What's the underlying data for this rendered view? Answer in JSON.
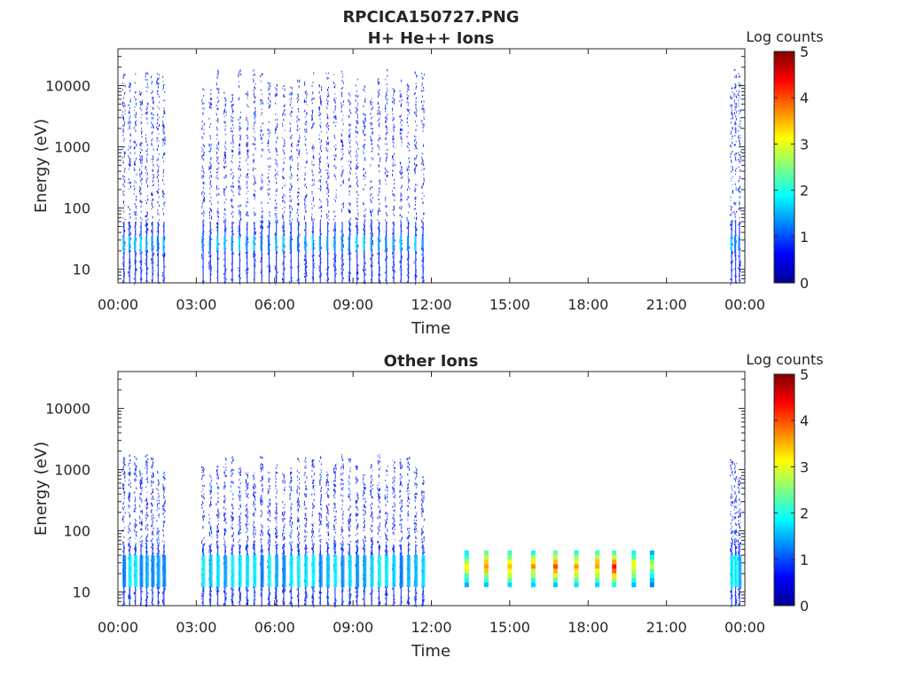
{
  "figure_title": "RPCICA150727.PNG",
  "colormap": [
    "#00008f",
    "#0000ff",
    "#0080ff",
    "#00ffff",
    "#80ff80",
    "#ffff00",
    "#ff8000",
    "#ff0000",
    "#800000"
  ],
  "chart_data": [
    {
      "type": "heatmap",
      "title": "H+ He++ Ions",
      "xlabel": "Time",
      "ylabel": "Energy (eV)",
      "x_ticks": [
        "00:00",
        "03:00",
        "06:00",
        "09:00",
        "12:00",
        "15:00",
        "18:00",
        "21:00",
        "00:00"
      ],
      "xlim_hours": [
        0,
        24
      ],
      "y_scale": "log",
      "y_ticks": [
        10,
        100,
        1000,
        10000
      ],
      "ylim": [
        6,
        40000
      ],
      "colorbar": {
        "label": "Log counts",
        "ticks": [
          0,
          1,
          2,
          3,
          4,
          5
        ],
        "range": [
          0,
          5
        ]
      },
      "data_intervals_hours": [
        [
          0.1,
          1.85
        ],
        [
          3.1,
          11.8
        ],
        [
          23.4,
          23.85
        ]
      ],
      "burst_count_in_intervals": [
        8,
        31,
        3
      ],
      "energy_extent_eV": [
        6,
        20000
      ],
      "peak_log_counts": 2,
      "peak_energy_band_eV": [
        20,
        35
      ]
    },
    {
      "type": "heatmap",
      "title": "Other Ions",
      "xlabel": "Time",
      "ylabel": "Energy (eV)",
      "x_ticks": [
        "00:00",
        "03:00",
        "06:00",
        "09:00",
        "12:00",
        "15:00",
        "18:00",
        "21:00",
        "00:00"
      ],
      "xlim_hours": [
        0,
        24
      ],
      "y_scale": "log",
      "y_ticks": [
        10,
        100,
        1000,
        10000
      ],
      "ylim": [
        6,
        40000
      ],
      "colorbar": {
        "label": "Log counts",
        "ticks": [
          0,
          1,
          2,
          3,
          4,
          5
        ],
        "range": [
          0,
          5
        ]
      },
      "data_intervals_hours": [
        [
          0.1,
          1.85
        ],
        [
          3.1,
          11.8
        ],
        [
          23.4,
          23.85
        ]
      ],
      "burst_count_in_intervals": [
        8,
        31,
        3
      ],
      "energy_extent_eV": [
        6,
        2000
      ],
      "band_log_counts": 2,
      "band_energy_eV": [
        12,
        40
      ],
      "dense_bursts": [
        {
          "t": 13.35,
          "peak_log_counts": 3.5
        },
        {
          "t": 14.1,
          "peak_log_counts": 4.0
        },
        {
          "t": 15.0,
          "peak_log_counts": 4.0
        },
        {
          "t": 15.9,
          "peak_log_counts": 3.8
        },
        {
          "t": 16.75,
          "peak_log_counts": 4.2
        },
        {
          "t": 17.55,
          "peak_log_counts": 4.0
        },
        {
          "t": 18.35,
          "peak_log_counts": 4.0
        },
        {
          "t": 19.0,
          "peak_log_counts": 4.5
        },
        {
          "t": 19.75,
          "peak_log_counts": 3.5
        },
        {
          "t": 20.45,
          "peak_log_counts": 3.0
        }
      ],
      "dense_burst_energy_eV": [
        12,
        48
      ]
    }
  ]
}
